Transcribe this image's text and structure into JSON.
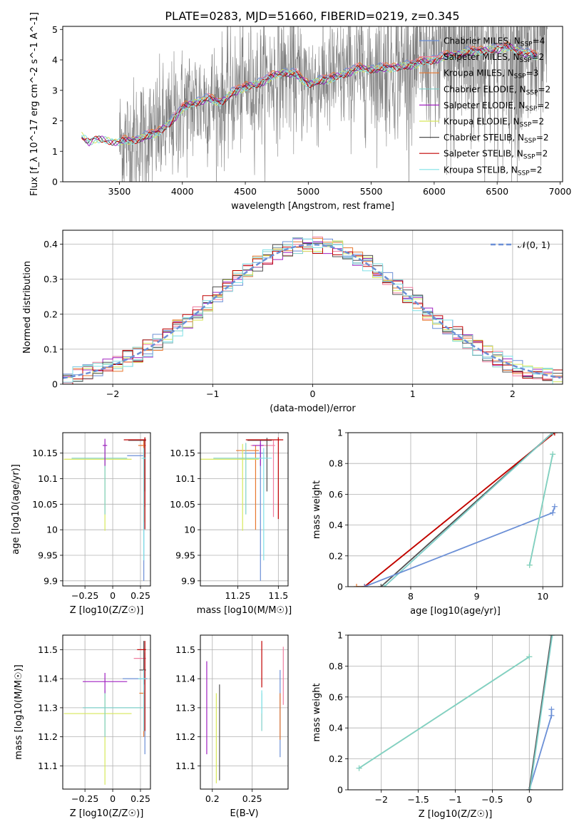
{
  "figure_title": "PLATE=0283, MJD=51660, FIBERID=0219, z=0.345",
  "colors": {
    "Chabrier MILES": "#6b8fd6",
    "Salpeter MILES": "#f07ea0",
    "Kroupa MILES": "#e8772e",
    "Chabrier ELODIE": "#7fcfc9",
    "Salpeter ELODIE": "#a020c0",
    "Kroupa ELODIE": "#d6e85a",
    "Chabrier STELIB": "#505050",
    "Salpeter STELIB": "#c00000",
    "Kroupa STELIB": "#7fe0e6",
    "data": "#808080"
  },
  "chart_data": [
    {
      "id": "spectrum",
      "type": "line",
      "xlabel": "wavelength [Angstrom, rest frame]",
      "ylabel": "Flux [f_λ 10^-17 erg cm^-2 s^-1 A^-1]",
      "xlim": [
        3050,
        7020
      ],
      "ylim": [
        0,
        5.1
      ],
      "xticks": [
        3500,
        4000,
        4500,
        5000,
        5500,
        6000,
        6500,
        7000
      ],
      "yticks": [
        0,
        1,
        2,
        3,
        4,
        5
      ],
      "grid": false,
      "legend_position": "top-right",
      "legend": [
        {
          "series": "Chabrier MILES",
          "label": "Chabrier MILES, N",
          "sub": "SSP",
          "tail": "=4"
        },
        {
          "series": "Salpeter MILES",
          "label": "Salpeter MILES, N",
          "sub": "SSP",
          "tail": "=2"
        },
        {
          "series": "Kroupa MILES",
          "label": "Kroupa MILES, N",
          "sub": "SSP",
          "tail": "=3"
        },
        {
          "series": "Chabrier ELODIE",
          "label": "Chabrier ELODIE, N",
          "sub": "SSP",
          "tail": "=2"
        },
        {
          "series": "Salpeter ELODIE",
          "label": "Salpeter ELODIE, N",
          "sub": "SSP",
          "tail": "=2"
        },
        {
          "series": "Kroupa ELODIE",
          "label": "Kroupa ELODIE, N",
          "sub": "SSP",
          "tail": "=2"
        },
        {
          "series": "Chabrier STELIB",
          "label": "Chabrier STELIB, N",
          "sub": "SSP",
          "tail": "=2"
        },
        {
          "series": "Salpeter STELIB",
          "label": "Salpeter STELIB, N",
          "sub": "SSP",
          "tail": "=2"
        },
        {
          "series": "Kroupa STELIB",
          "label": "Kroupa STELIB, N",
          "sub": "SSP",
          "tail": "=2"
        }
      ],
      "model_continuum": {
        "x": [
          3200,
          3260,
          3300,
          3400,
          3500,
          3600,
          3700,
          3800,
          3900,
          4000,
          4100,
          4200,
          4300,
          4400,
          4500,
          4600,
          4700,
          4800,
          4900,
          5000,
          5200,
          5400,
          5600,
          5800,
          6000,
          6200,
          6400,
          6600,
          6800
        ],
        "y": [
          1.5,
          1.3,
          1.4,
          1.35,
          1.3,
          1.35,
          1.45,
          1.6,
          1.9,
          2.4,
          2.6,
          2.7,
          2.6,
          2.9,
          3.1,
          3.2,
          3.4,
          3.6,
          3.5,
          3.2,
          3.4,
          3.7,
          3.7,
          3.8,
          4.0,
          4.2,
          4.3,
          4.4,
          4.1
        ]
      },
      "data_range": [
        3500,
        6900
      ]
    },
    {
      "id": "residuals",
      "type": "line",
      "xlabel": "(data-model)/error",
      "ylabel": "Normed distribution",
      "xlim": [
        -2.5,
        2.5
      ],
      "ylim": [
        0,
        0.44
      ],
      "xticks": [
        -2,
        -1,
        0,
        1,
        2
      ],
      "yticks": [
        0.0,
        0.1,
        0.2,
        0.3,
        0.4
      ],
      "grid": true,
      "legend_position": "top-right",
      "normal_label": "𝒩(0, 1)",
      "hist_bin_width": 0.1
    },
    {
      "id": "age_vs_Z",
      "type": "scatter",
      "xlabel": "Z [log10(Z/Z☉)]",
      "ylabel": "age [log10(age/yr)]",
      "xlim": [
        -0.45,
        0.34
      ],
      "ylim": [
        9.89,
        10.19
      ],
      "xticks": [
        -0.25,
        0.0,
        0.25
      ],
      "yticks": [
        9.9,
        9.95,
        10.0,
        10.05,
        10.1,
        10.15
      ],
      "grid": true,
      "points": [
        {
          "series": "Chabrier MILES",
          "x": 0.28,
          "y": 10.145,
          "xerr": [
            0.15,
            0.01
          ],
          "yerr": [
            0.245,
            0.03
          ]
        },
        {
          "series": "Salpeter MILES",
          "x": 0.29,
          "y": 10.165,
          "xerr": [
            0.04,
            0.01
          ],
          "yerr": [
            0.12,
            0.01
          ]
        },
        {
          "series": "Kroupa MILES",
          "x": 0.28,
          "y": 10.165,
          "xerr": [
            0.05,
            0.01
          ],
          "yerr": [
            0.15,
            0.01
          ]
        },
        {
          "series": "Kroupa ELODIE",
          "x": -0.07,
          "y": 10.138,
          "xerr": [
            0.37,
            0.24
          ],
          "yerr": [
            0.14,
            0.03
          ]
        },
        {
          "series": "Chabrier ELODIE",
          "x": -0.07,
          "y": 10.14,
          "xerr": [
            0.3,
            0.2
          ],
          "yerr": [
            0.11,
            0.03
          ]
        },
        {
          "series": "Salpeter ELODIE",
          "x": -0.07,
          "y": 10.165,
          "xerr": [
            0.02,
            0.02
          ],
          "yerr": [
            0.04,
            0.013
          ]
        },
        {
          "series": "Chabrier STELIB",
          "x": 0.29,
          "y": 10.175,
          "xerr": [
            0.15,
            0.01
          ],
          "yerr": [
            0.1,
            0.005
          ]
        },
        {
          "series": "Salpeter STELIB",
          "x": 0.29,
          "y": 10.176,
          "xerr": [
            0.19,
            0.01
          ],
          "yerr": [
            0.175,
            0.005
          ]
        },
        {
          "series": "Kroupa STELIB",
          "x": 0.28,
          "y": 10.14,
          "xerr": [
            0.02,
            0.02
          ],
          "yerr": [
            0.2,
            0.02
          ]
        }
      ]
    },
    {
      "id": "age_vs_mass",
      "type": "scatter",
      "xlabel": "mass [log10(M/M☉)]",
      "ylabel": "",
      "xlim": [
        11.02,
        11.56
      ],
      "ylim": [
        9.89,
        10.19
      ],
      "xticks": [
        11.25,
        11.5
      ],
      "yticks": [
        9.9,
        9.95,
        10.0,
        10.05,
        10.1,
        10.15
      ],
      "grid": true,
      "points": [
        {
          "series": "Chabrier MILES",
          "x": 11.39,
          "y": 10.15,
          "xerr": [
            0.1,
            0.02
          ],
          "yerr": [
            0.25,
            0.02
          ]
        },
        {
          "series": "Salpeter MILES",
          "x": 11.47,
          "y": 10.165,
          "xerr": [
            0.14,
            0.01
          ],
          "yerr": [
            0.14,
            0.01
          ]
        },
        {
          "series": "Kroupa MILES",
          "x": 11.36,
          "y": 10.155,
          "xerr": [
            0.12,
            0.02
          ],
          "yerr": [
            0.155,
            0.01
          ]
        },
        {
          "series": "Kroupa ELODIE",
          "x": 11.28,
          "y": 10.138,
          "xerr": [
            0.26,
            0.1
          ],
          "yerr": [
            0.14,
            0.03
          ]
        },
        {
          "series": "Chabrier ELODIE",
          "x": 11.3,
          "y": 10.14,
          "xerr": [
            0.2,
            0.1
          ],
          "yerr": [
            0.11,
            0.03
          ]
        },
        {
          "series": "Salpeter ELODIE",
          "x": 11.39,
          "y": 10.165,
          "xerr": [
            0.05,
            0.02
          ],
          "yerr": [
            0.04,
            0.01
          ]
        },
        {
          "series": "Chabrier STELIB",
          "x": 11.43,
          "y": 10.175,
          "xerr": [
            0.12,
            0.03
          ],
          "yerr": [
            0.1,
            0.005
          ]
        },
        {
          "series": "Salpeter STELIB",
          "x": 11.5,
          "y": 10.176,
          "xerr": [
            0.2,
            0.03
          ],
          "yerr": [
            0.155,
            0.005
          ]
        },
        {
          "series": "Kroupa STELIB",
          "x": 11.41,
          "y": 10.14,
          "xerr": [
            0.1,
            0.05
          ],
          "yerr": [
            0.2,
            0.02
          ]
        }
      ]
    },
    {
      "id": "weight_vs_age",
      "type": "line",
      "xlabel": "age [log10(age/yr)]",
      "ylabel": "mass weight",
      "xlim": [
        7.05,
        10.3
      ],
      "ylim": [
        0,
        1.0
      ],
      "xticks": [
        8,
        9,
        10
      ],
      "yticks": [
        0.0,
        0.2,
        0.4,
        0.6,
        0.8,
        1.0
      ],
      "grid": true,
      "series": [
        {
          "series": "Kroupa MILES",
          "x": [
            7.18,
            7.3,
            10.18
          ],
          "y": [
            0.0,
            0.0,
            1.0
          ]
        },
        {
          "series": "Salpeter STELIB",
          "x": [
            7.3,
            10.18
          ],
          "y": [
            0.0,
            1.0
          ]
        },
        {
          "series": "Chabrier STELIB",
          "x": [
            7.55,
            10.15
          ],
          "y": [
            0.0,
            1.0
          ]
        },
        {
          "series": "Chabrier ELODIE",
          "x": [
            7.6,
            10.15
          ],
          "y": [
            0.0,
            1.0
          ]
        },
        {
          "series": "Chabrier MILES",
          "x": [
            7.3,
            10.15,
            10.18
          ],
          "y": [
            0.0,
            0.48,
            0.52
          ]
        },
        {
          "series": "Kroupa ELODIE",
          "x": [
            9.8,
            10.15
          ],
          "y": [
            0.14,
            0.86
          ]
        },
        {
          "series": "Chabrier ELODIE",
          "x": [
            9.8,
            10.15
          ],
          "y": [
            0.14,
            0.86
          ]
        }
      ]
    },
    {
      "id": "mass_vs_Z",
      "type": "scatter",
      "xlabel": "Z [log10(Z/Z☉)]",
      "ylabel": "mass [log10(M/M☉)]",
      "xlim": [
        -0.45,
        0.34
      ],
      "ylim": [
        11.02,
        11.55
      ],
      "xticks": [
        -0.25,
        0.0,
        0.25
      ],
      "yticks": [
        11.1,
        11.2,
        11.3,
        11.4,
        11.5
      ],
      "grid": true,
      "points": [
        {
          "series": "Chabrier MILES",
          "x": 0.29,
          "y": 11.4,
          "xerr": [
            0.2,
            0.02
          ],
          "yerr": [
            0.26,
            0.02
          ]
        },
        {
          "series": "Salpeter MILES",
          "x": 0.29,
          "y": 11.47,
          "xerr": [
            0.1,
            0.01
          ],
          "yerr": [
            0.11,
            0.02
          ]
        },
        {
          "series": "Kroupa MILES",
          "x": 0.28,
          "y": 11.35,
          "xerr": [
            0.04,
            0.01
          ],
          "yerr": [
            0.15,
            0.01
          ]
        },
        {
          "series": "Kroupa ELODIE",
          "x": -0.07,
          "y": 11.28,
          "xerr": [
            0.37,
            0.24
          ],
          "yerr": [
            0.245,
            0.07
          ]
        },
        {
          "series": "Chabrier ELODIE",
          "x": -0.07,
          "y": 11.3,
          "xerr": [
            0.2,
            0.35
          ],
          "yerr": [
            0.1,
            0.06
          ]
        },
        {
          "series": "Salpeter ELODIE",
          "x": -0.07,
          "y": 11.39,
          "xerr": [
            0.2,
            0.2
          ],
          "yerr": [
            0.04,
            0.03
          ]
        },
        {
          "series": "Chabrier STELIB",
          "x": 0.28,
          "y": 11.43,
          "xerr": [
            0.04,
            0.02
          ],
          "yerr": [
            0.05,
            0.1
          ]
        },
        {
          "series": "Salpeter STELIB",
          "x": 0.29,
          "y": 11.5,
          "xerr": [
            0.07,
            0.01
          ],
          "yerr": [
            0.28,
            0.03
          ]
        },
        {
          "series": "Kroupa STELIB",
          "x": 0.28,
          "y": 11.4,
          "xerr": [
            0.05,
            0.02
          ],
          "yerr": [
            0.18,
            0.03
          ]
        }
      ]
    },
    {
      "id": "mass_vs_ebv",
      "type": "scatter",
      "xlabel": "E(B-V)",
      "ylabel": "",
      "xlim": [
        0.185,
        0.295
      ],
      "ylim": [
        11.02,
        11.55
      ],
      "xticks": [
        0.2,
        0.25
      ],
      "yticks": [
        11.1,
        11.2,
        11.3,
        11.4,
        11.5
      ],
      "grid": true,
      "points": [
        {
          "series": "Salpeter ELODIE",
          "x": 0.193,
          "y": 11.3,
          "xerr": [
            0,
            0
          ],
          "yerr": [
            0.16,
            0.16
          ]
        },
        {
          "series": "Kroupa ELODIE",
          "x": 0.205,
          "y": 11.2,
          "xerr": [
            0,
            0
          ],
          "yerr": [
            0.16,
            0.15
          ]
        },
        {
          "series": "Chabrier STELIB",
          "x": 0.209,
          "y": 11.21,
          "xerr": [
            0,
            0
          ],
          "yerr": [
            0.16,
            0.17
          ]
        },
        {
          "series": "Salpeter STELIB",
          "x": 0.262,
          "y": 11.45,
          "xerr": [
            0,
            0
          ],
          "yerr": [
            0.08,
            0.08
          ]
        },
        {
          "series": "Chabrier ELODIE",
          "x": 0.262,
          "y": 11.28,
          "xerr": [
            0,
            0
          ],
          "yerr": [
            0.06,
            0.07
          ]
        },
        {
          "series": "Chabrier MILES",
          "x": 0.285,
          "y": 11.28,
          "xerr": [
            0,
            0
          ],
          "yerr": [
            0.15,
            0.15
          ]
        },
        {
          "series": "Kroupa MILES",
          "x": 0.285,
          "y": 11.27,
          "xerr": [
            0,
            0
          ],
          "yerr": [
            0.08,
            0.08
          ]
        },
        {
          "series": "Salpeter MILES",
          "x": 0.289,
          "y": 11.41,
          "xerr": [
            0,
            0
          ],
          "yerr": [
            0.1,
            0.1
          ]
        },
        {
          "series": "Kroupa STELIB",
          "x": 0.262,
          "y": 11.32,
          "xerr": [
            0,
            0
          ],
          "yerr": [
            0.04,
            0.04
          ]
        }
      ]
    },
    {
      "id": "weight_vs_Z",
      "type": "line",
      "xlabel": "Z [log10(Z/Z☉)]",
      "ylabel": "mass weight",
      "xlim": [
        -2.45,
        0.45
      ],
      "ylim": [
        0,
        1.0
      ],
      "xticks": [
        -2.0,
        -1.5,
        -1.0,
        -0.5,
        0.0
      ],
      "yticks": [
        0.0,
        0.2,
        0.4,
        0.6,
        0.8,
        1.0
      ],
      "grid": true,
      "series": [
        {
          "series": "Kroupa ELODIE",
          "x": [
            -2.3,
            0.0
          ],
          "y": [
            0.14,
            0.86
          ]
        },
        {
          "series": "Chabrier ELODIE",
          "x": [
            -2.3,
            0.0
          ],
          "y": [
            0.14,
            0.86
          ]
        },
        {
          "series": "Chabrier MILES",
          "x": [
            0.0,
            0.3,
            0.3
          ],
          "y": [
            0.0,
            0.48,
            0.52
          ]
        },
        {
          "series": "Chabrier STELIB",
          "x": [
            0.0,
            0.3
          ],
          "y": [
            0.0,
            1.0
          ]
        },
        {
          "series": "Chabrier ELODIE",
          "x": [
            0.01,
            0.31
          ],
          "y": [
            0.0,
            1.0
          ]
        }
      ]
    }
  ]
}
